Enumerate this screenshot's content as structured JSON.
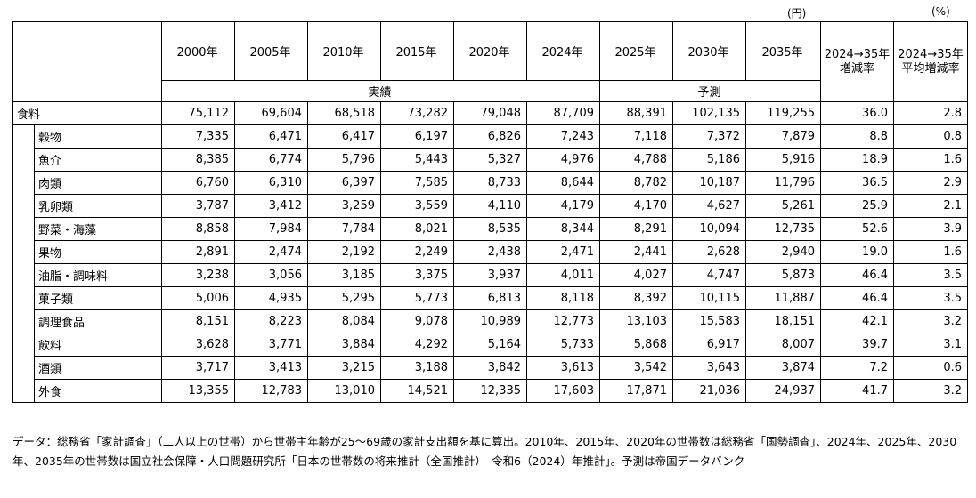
{
  "units": {
    "yen": "(円)",
    "percent": "(%)"
  },
  "headers": {
    "years": [
      "2000年",
      "2005年",
      "2010年",
      "2015年",
      "2020年",
      "2024年",
      "2025年",
      "2030年",
      "2035年"
    ],
    "change": "2024→35年増減率",
    "avg_change": "2024→35年平均増減率",
    "actual": "実績",
    "forecast": "予測"
  },
  "total": {
    "label": "食料",
    "values": [
      "75,112",
      "69,604",
      "68,518",
      "73,282",
      "79,048",
      "87,709",
      "88,391",
      "102,135",
      "119,255",
      "36.0",
      "2.8"
    ]
  },
  "rows": [
    {
      "label": "穀物",
      "values": [
        "7,335",
        "6,471",
        "6,417",
        "6,197",
        "6,826",
        "7,243",
        "7,118",
        "7,372",
        "7,879",
        "8.8",
        "0.8"
      ]
    },
    {
      "label": "魚介",
      "values": [
        "8,385",
        "6,774",
        "5,796",
        "5,443",
        "5,327",
        "4,976",
        "4,788",
        "5,186",
        "5,916",
        "18.9",
        "1.6"
      ]
    },
    {
      "label": "肉類",
      "values": [
        "6,760",
        "6,310",
        "6,397",
        "7,585",
        "8,733",
        "8,644",
        "8,782",
        "10,187",
        "11,796",
        "36.5",
        "2.9"
      ]
    },
    {
      "label": "乳卵類",
      "values": [
        "3,787",
        "3,412",
        "3,259",
        "3,559",
        "4,110",
        "4,179",
        "4,170",
        "4,627",
        "5,261",
        "25.9",
        "2.1"
      ]
    },
    {
      "label": "野菜・海藻",
      "values": [
        "8,858",
        "7,984",
        "7,784",
        "8,021",
        "8,535",
        "8,344",
        "8,291",
        "10,094",
        "12,735",
        "52.6",
        "3.9"
      ]
    },
    {
      "label": "果物",
      "values": [
        "2,891",
        "2,474",
        "2,192",
        "2,249",
        "2,438",
        "2,471",
        "2,441",
        "2,628",
        "2,940",
        "19.0",
        "1.6"
      ]
    },
    {
      "label": "油脂・調味料",
      "values": [
        "3,238",
        "3,056",
        "3,185",
        "3,375",
        "3,937",
        "4,011",
        "4,027",
        "4,747",
        "5,873",
        "46.4",
        "3.5"
      ]
    },
    {
      "label": "菓子類",
      "values": [
        "5,006",
        "4,935",
        "5,295",
        "5,773",
        "6,813",
        "8,118",
        "8,392",
        "10,115",
        "11,887",
        "46.4",
        "3.5"
      ]
    },
    {
      "label": "調理食品",
      "values": [
        "8,151",
        "8,223",
        "8,084",
        "9,078",
        "10,989",
        "12,773",
        "13,103",
        "15,583",
        "18,151",
        "42.1",
        "3.2"
      ]
    },
    {
      "label": "飲料",
      "values": [
        "3,628",
        "3,771",
        "3,884",
        "4,292",
        "5,164",
        "5,733",
        "5,868",
        "6,917",
        "8,007",
        "39.7",
        "3.1"
      ]
    },
    {
      "label": "酒類",
      "values": [
        "3,717",
        "3,413",
        "3,215",
        "3,188",
        "3,842",
        "3,613",
        "3,542",
        "3,643",
        "3,874",
        "7.2",
        "0.6"
      ]
    },
    {
      "label": "外食",
      "values": [
        "13,355",
        "12,783",
        "13,010",
        "14,521",
        "12,335",
        "17,603",
        "17,871",
        "21,036",
        "24,937",
        "41.7",
        "3.2"
      ]
    }
  ],
  "note": "データ：総務省「家計調査」（二人以上の世帯）から世帯主年齢が25～69歳の家計支出額を基に算出。2010年、2015年、2020年の世帯数は総務省「国勢調査」、2024年、2025年、2030年、2035年の世帯数は国立社会保障・人口問題研究所「日本の世帯数の将来推計（全国推計）　令和6（2024）年推計」。予測は帝国データバンク"
}
